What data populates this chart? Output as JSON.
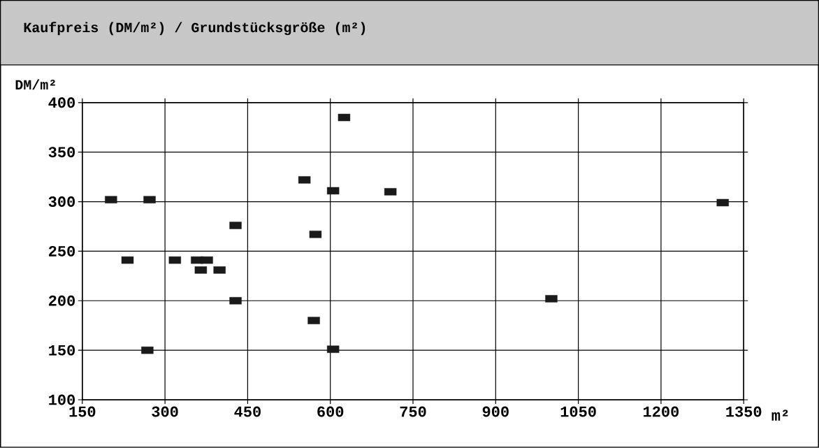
{
  "chart_data": {
    "type": "scatter",
    "title": "Kaufpreis (DM/m²) / Grundstücksgröße (m²)",
    "ylabel": "DM/m²",
    "xlabel": "m²",
    "x": [
      202,
      272,
      232,
      318,
      358,
      376,
      365,
      399,
      428,
      428,
      268,
      553,
      625,
      605,
      573,
      570,
      605,
      709,
      1001,
      1312
    ],
    "series": [
      {
        "color": "#1a1a1a",
        "values": [
          302,
          302,
          241,
          241,
          241,
          241,
          231,
          231,
          276,
          200,
          150,
          322,
          385,
          311,
          267,
          180,
          151,
          310,
          202,
          299
        ]
      }
    ],
    "xlim": [
      150,
      1350
    ],
    "xticks": [
      150,
      300,
      450,
      600,
      750,
      900,
      1050,
      1200,
      1350
    ],
    "ylim": [
      100,
      400
    ],
    "yticks": [
      100,
      150,
      200,
      250,
      300,
      350,
      400
    ],
    "grid": true,
    "marker": "square"
  }
}
